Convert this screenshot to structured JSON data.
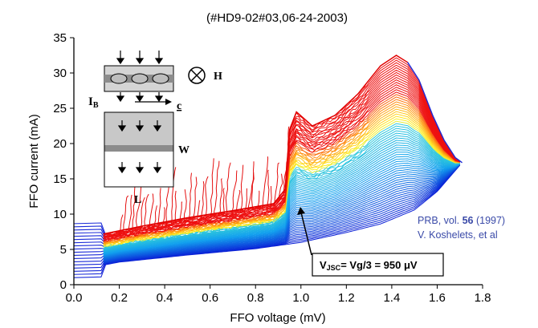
{
  "chart_data": {
    "type": "line",
    "title": "(#HD9-02#03,06-24-2003)",
    "xlabel": "FFO voltage (mV)",
    "ylabel": "FFO current (mA)",
    "xlim": [
      0.0,
      1.8
    ],
    "ylim": [
      0,
      35
    ],
    "xticks": [
      "0.0",
      "0.2",
      "0.4",
      "0.6",
      "0.8",
      "1.0",
      "1.2",
      "1.4",
      "1.6",
      "1.8"
    ],
    "yticks": [
      "0",
      "5",
      "10",
      "15",
      "20",
      "25",
      "30",
      "35"
    ],
    "grid": false,
    "annotation": {
      "text": "V",
      "sub": "JSC",
      "rest": "= Vg/3 = 950 μV",
      "points_to": [
        0.97,
        12.0
      ]
    },
    "reference": {
      "line1_prefix": "PRB, vol. ",
      "line1_volume": "56",
      "line1_year": "  (1997)",
      "line2": "V. Koshelets, et al"
    },
    "inset_labels": {
      "H": "H",
      "IB": "I",
      "IB_sub": "B",
      "c": "c",
      "W": "W",
      "L": "L"
    },
    "envelope": {
      "upper_red": [
        [
          0.13,
          7.2
        ],
        [
          0.3,
          8.3
        ],
        [
          0.5,
          9.5
        ],
        [
          0.7,
          10.5
        ],
        [
          0.88,
          11.5
        ],
        [
          0.93,
          13.5
        ],
        [
          0.95,
          22
        ],
        [
          0.98,
          24.5
        ],
        [
          1.05,
          22.5
        ],
        [
          1.15,
          24
        ],
        [
          1.25,
          27
        ],
        [
          1.35,
          31
        ],
        [
          1.42,
          32.5
        ],
        [
          1.47,
          31.5
        ]
      ],
      "blue_right": [
        [
          1.47,
          31.5
        ],
        [
          1.52,
          29
        ],
        [
          1.58,
          24
        ],
        [
          1.63,
          20.5
        ],
        [
          1.68,
          18
        ],
        [
          1.71,
          17.3
        ]
      ],
      "lower": [
        [
          0.0,
          1.0
        ],
        [
          0.05,
          2.3
        ],
        [
          0.2,
          3.2
        ],
        [
          0.5,
          4.2
        ],
        [
          0.8,
          5.1
        ],
        [
          1.0,
          6.0
        ],
        [
          1.2,
          7.4
        ],
        [
          1.35,
          8.6
        ],
        [
          1.5,
          10.6
        ],
        [
          1.6,
          13.2
        ],
        [
          1.71,
          17.3
        ]
      ]
    },
    "color_map": [
      "#0a1fd6",
      "#12a0ee",
      "#3ee0d0",
      "#ffef20",
      "#ff8d10",
      "#ee1010"
    ]
  }
}
